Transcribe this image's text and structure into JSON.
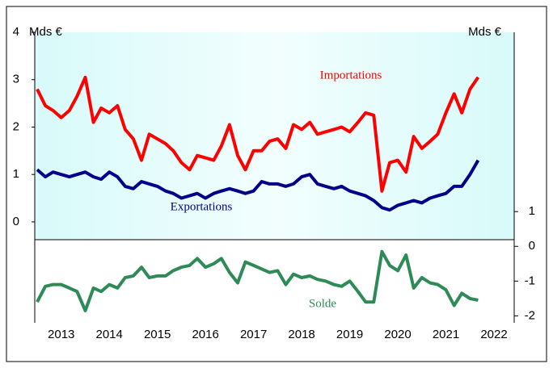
{
  "chart_data": {
    "type": "line",
    "ylabel": "Mds €",
    "y2label": "Mds €",
    "x": [
      2013,
      2013.17,
      2013.33,
      2013.5,
      2013.67,
      2013.83,
      2014,
      2014.17,
      2014.33,
      2014.5,
      2014.67,
      2014.83,
      2015,
      2015.17,
      2015.33,
      2015.5,
      2015.67,
      2015.83,
      2016,
      2016.17,
      2016.33,
      2016.5,
      2016.67,
      2016.83,
      2017,
      2017.17,
      2017.33,
      2017.5,
      2017.67,
      2017.83,
      2018,
      2018.17,
      2018.33,
      2018.5,
      2018.67,
      2018.83,
      2019,
      2019.17,
      2019.33,
      2019.5,
      2019.67,
      2019.83,
      2020,
      2020.17,
      2020.33,
      2020.5,
      2020.67,
      2020.83,
      2021,
      2021.17,
      2021.33,
      2021.5,
      2021.67,
      2021.83,
      2022,
      2022.17
    ],
    "series": [
      {
        "name": "Importations",
        "color": "#ff0000",
        "values": [
          2.8,
          2.45,
          2.35,
          2.2,
          2.35,
          2.65,
          3.05,
          2.1,
          2.4,
          2.3,
          2.45,
          1.95,
          1.75,
          1.3,
          1.85,
          1.75,
          1.65,
          1.5,
          1.25,
          1.1,
          1.4,
          1.35,
          1.3,
          1.6,
          2.05,
          1.4,
          1.1,
          1.5,
          1.5,
          1.7,
          1.75,
          1.55,
          2.05,
          1.95,
          2.1,
          1.85,
          1.9,
          1.95,
          2.0,
          1.9,
          2.1,
          2.3,
          2.25,
          0.65,
          1.25,
          1.3,
          1.05,
          1.8,
          1.55,
          1.7,
          1.85,
          2.3,
          2.7,
          2.3,
          2.8,
          3.05
        ]
      },
      {
        "name": "Exportations",
        "color": "#00008b",
        "values": [
          1.1,
          0.95,
          1.05,
          1.0,
          0.95,
          1.0,
          1.05,
          0.95,
          0.9,
          1.05,
          0.95,
          0.75,
          0.7,
          0.85,
          0.8,
          0.75,
          0.65,
          0.6,
          0.5,
          0.55,
          0.6,
          0.5,
          0.6,
          0.65,
          0.7,
          0.65,
          0.6,
          0.65,
          0.85,
          0.8,
          0.8,
          0.75,
          0.8,
          0.95,
          1.0,
          0.8,
          0.75,
          0.7,
          0.75,
          0.65,
          0.6,
          0.55,
          0.45,
          0.3,
          0.25,
          0.35,
          0.4,
          0.45,
          0.4,
          0.5,
          0.55,
          0.6,
          0.75,
          0.75,
          1.0,
          1.3
        ]
      },
      {
        "name": "Solde",
        "color": "#2e8b57",
        "axis": "y2",
        "values": [
          -1.6,
          -1.15,
          -1.1,
          -1.1,
          -1.2,
          -1.3,
          -1.85,
          -1.2,
          -1.3,
          -1.1,
          -1.2,
          -0.9,
          -0.85,
          -0.6,
          -0.9,
          -0.85,
          -0.85,
          -0.7,
          -0.6,
          -0.55,
          -0.35,
          -0.6,
          -0.5,
          -0.35,
          -0.75,
          -1.05,
          -0.45,
          -0.55,
          -0.65,
          -0.75,
          -0.7,
          -1.1,
          -0.8,
          -0.9,
          -0.85,
          -0.95,
          -1.0,
          -1.1,
          -1.15,
          -1.0,
          -1.3,
          -1.6,
          -1.6,
          -0.15,
          -0.55,
          -0.7,
          -0.25,
          -1.2,
          -0.9,
          -1.05,
          -1.1,
          -1.25,
          -1.7,
          -1.35,
          -1.5,
          -1.55
        ]
      }
    ],
    "xlim": [
      2012.95,
      2022.92
    ],
    "xticks": [
      2013,
      2014,
      2015,
      2016,
      2017,
      2018,
      2019,
      2020,
      2021,
      2022
    ],
    "ylim": [
      -2.13,
      4
    ],
    "yticks": [
      0,
      1,
      2,
      3,
      4
    ],
    "y2lim": [
      -2.2,
      6.16
    ],
    "y2ticks": [
      -2,
      -1,
      0,
      1
    ]
  }
}
